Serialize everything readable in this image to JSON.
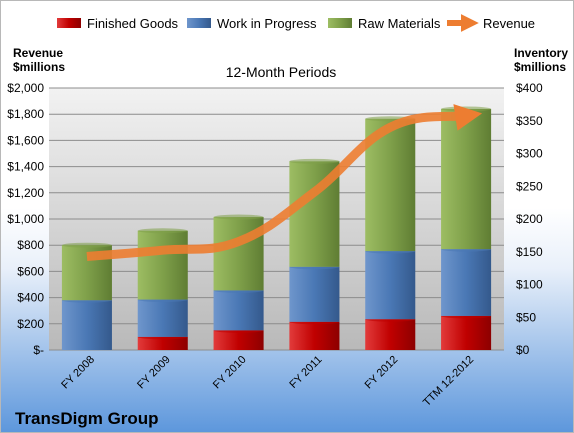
{
  "chart_data": {
    "type": "bar",
    "subtitle": "12-Month Periods",
    "company": "TransDigm Group",
    "left_axis": {
      "title_line1": "Revenue",
      "title_line2": "$millions",
      "ylim": [
        0,
        2000
      ],
      "ticks": [
        "$-",
        "$200",
        "$400",
        "$600",
        "$800",
        "$1,000",
        "$1,200",
        "$1,400",
        "$1,600",
        "$1,800",
        "$2,000"
      ]
    },
    "right_axis": {
      "title_line1": "Inventory",
      "title_line2": "$millions",
      "ylim": [
        0,
        400
      ],
      "ticks": [
        "$0",
        "$50",
        "$100",
        "$150",
        "$200",
        "$250",
        "$300",
        "$350",
        "$400"
      ]
    },
    "categories": [
      "FY 2008",
      "FY 2009",
      "FY 2010",
      "FY 2011",
      "FY 2012",
      "TTM 12-2012"
    ],
    "stacked": true,
    "series": [
      {
        "name": "Finished Goods",
        "axis": "right",
        "color": "#c00000",
        "values": [
          0,
          20,
          30,
          43,
          47,
          52
        ]
      },
      {
        "name": "Work in Progress",
        "axis": "right",
        "color": "#4a78b5",
        "values": [
          76,
          57,
          61,
          84,
          104,
          102
        ]
      },
      {
        "name": "Raw Materials",
        "axis": "right",
        "color": "#7fa04a",
        "values": [
          84,
          105,
          112,
          161,
          202,
          214
        ]
      },
      {
        "name": "Revenue",
        "axis": "left",
        "type": "line",
        "color": "#ed7d31",
        "values": [
          714,
          762,
          828,
          1206,
          1700,
          1788
        ]
      }
    ],
    "grid": true,
    "legend": "top"
  }
}
